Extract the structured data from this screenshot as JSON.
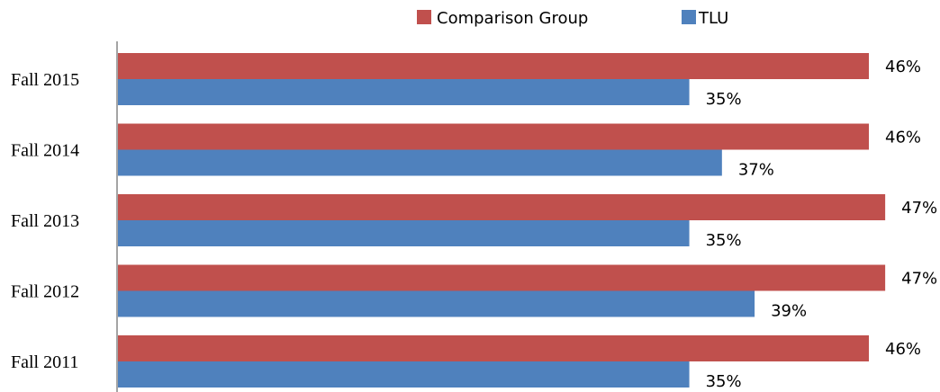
{
  "chart_data": {
    "type": "bar",
    "orientation": "horizontal",
    "categories": [
      "Fall 2015",
      "Fall 2014",
      "Fall 2013",
      "Fall 2012",
      "Fall 2011"
    ],
    "series": [
      {
        "name": "Comparison Group",
        "values": [
          46,
          46,
          47,
          47,
          46
        ],
        "color": "#c0504d"
      },
      {
        "name": "TLU",
        "values": [
          35,
          37,
          35,
          39,
          35
        ],
        "color": "#4f81bd"
      }
    ],
    "value_format": "{v}%",
    "xlim": [
      0,
      46
    ],
    "axis_color": "#868686",
    "legend_position": "top"
  }
}
